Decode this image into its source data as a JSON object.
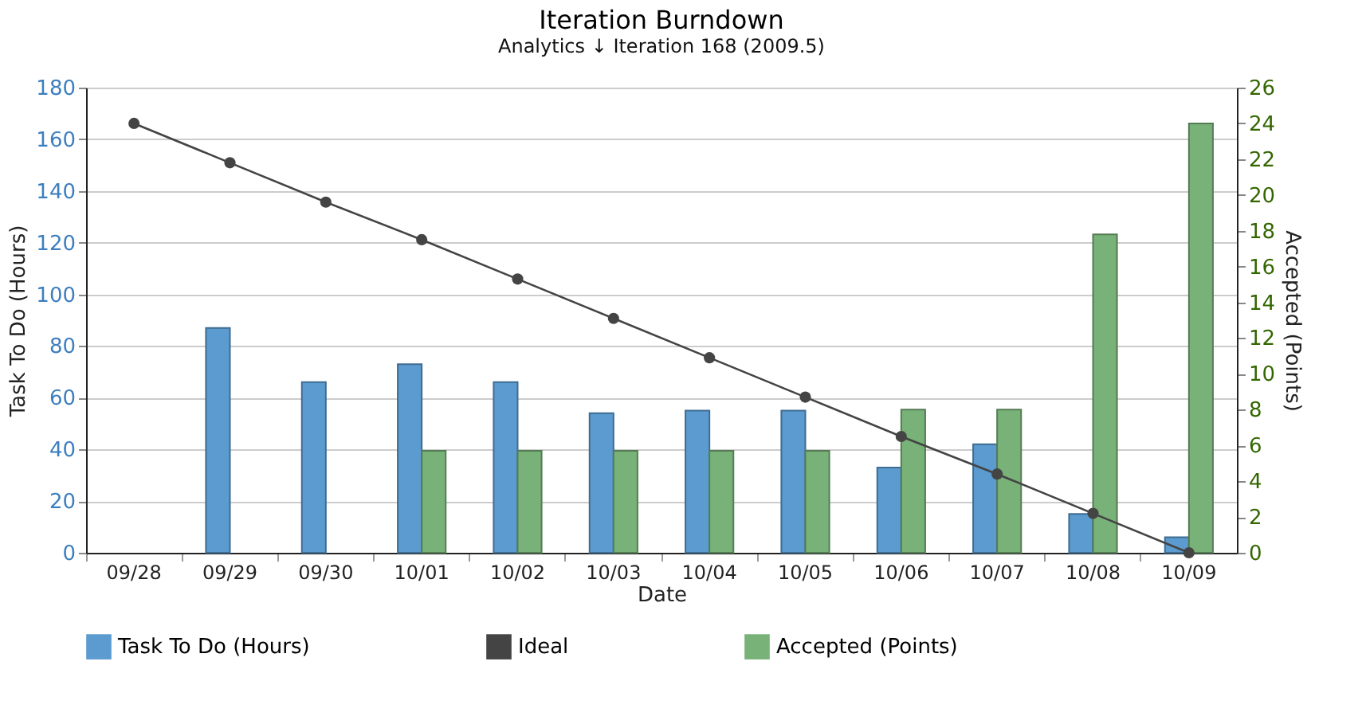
{
  "chart_data": {
    "type": "bar",
    "title": "Iteration Burndown",
    "subtitle": "Analytics ↓ Iteration 168 (2009.5)",
    "xlabel": "Date",
    "ylabel": "Task To Do (Hours)",
    "y2label": "Accepted (Points)",
    "categories": [
      "09/28",
      "09/29",
      "09/30",
      "10/01",
      "10/02",
      "10/03",
      "10/04",
      "10/05",
      "10/06",
      "10/07",
      "10/08",
      "10/09"
    ],
    "series": [
      {
        "name": "Task To Do (Hours)",
        "color": "#5b9bd0",
        "values": [
          0,
          87,
          66,
          73,
          66,
          54,
          55,
          55,
          33,
          42,
          15,
          6
        ]
      },
      {
        "name": "Ideal",
        "type": "line",
        "axis": "y2",
        "color": "#444444",
        "marker": "circle",
        "values": [
          24,
          21.8,
          19.6,
          17.5,
          15.3,
          13.1,
          10.9,
          8.7,
          6.5,
          4.4,
          2.2,
          0
        ]
      },
      {
        "name": "Accepted (Points)",
        "axis": "y2",
        "color": "#78b278",
        "values": [
          0,
          0,
          0,
          5.7,
          5.7,
          5.7,
          5.7,
          5.7,
          8,
          8,
          17.8,
          24
        ]
      }
    ],
    "ylim": [
      0,
      180
    ],
    "yticks": [
      0,
      20,
      40,
      60,
      80,
      100,
      120,
      140,
      160,
      180
    ],
    "y2lim": [
      0,
      26
    ],
    "y2ticks": [
      0,
      2,
      4,
      6,
      8,
      10,
      12,
      14,
      16,
      18,
      20,
      22,
      24,
      26
    ],
    "grid": "y",
    "legend": "bottom"
  }
}
